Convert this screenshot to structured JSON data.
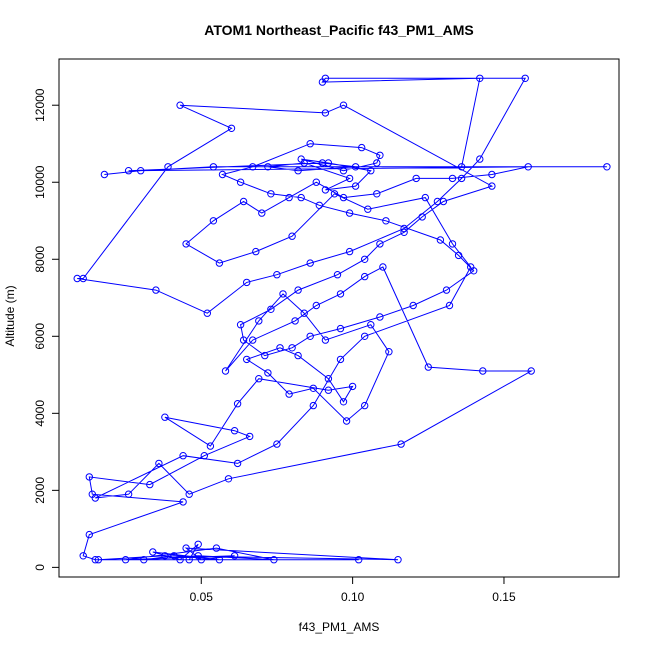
{
  "chart_data": {
    "type": "line",
    "title": "ATOM1 Northeast_Pacific f43_PM1_AMS",
    "xlabel": "f43_PM1_AMS",
    "ylabel": "Altitude (m)",
    "xlim": [
      0.003,
      0.188
    ],
    "ylim": [
      -250,
      13200
    ],
    "xticks": [
      0.05,
      0.1,
      0.15
    ],
    "xtick_labels": [
      "0.05",
      "0.10",
      "0.15"
    ],
    "yticks": [
      0,
      2000,
      4000,
      6000,
      8000,
      10000,
      12000
    ],
    "ytick_labels": [
      "0",
      "2000",
      "4000",
      "6000",
      "8000",
      "10000",
      "12000"
    ],
    "marker": "open-circle",
    "grid": false,
    "series": [
      {
        "color": "#0000ff",
        "x": [
          0.102,
          0.016,
          0.038,
          0.115,
          0.045,
          0.05,
          0.061,
          0.025,
          0.055,
          0.074,
          0.049,
          0.031,
          0.041,
          0.056,
          0.034,
          0.043,
          0.049,
          0.046,
          0.015,
          0.011,
          0.013,
          0.044,
          0.014,
          0.013,
          0.033,
          0.051,
          0.066,
          0.061,
          0.038,
          0.053,
          0.062,
          0.069,
          0.092,
          0.1,
          0.097,
          0.092,
          0.082,
          0.076,
          0.065,
          0.072,
          0.079,
          0.087,
          0.098,
          0.104,
          0.112,
          0.106,
          0.091,
          0.084,
          0.077,
          0.069,
          0.058,
          0.067,
          0.081,
          0.088,
          0.096,
          0.104,
          0.11,
          0.125,
          0.143,
          0.159,
          0.116,
          0.059,
          0.046,
          0.036,
          0.026,
          0.015,
          0.044,
          0.062,
          0.075,
          0.087,
          0.096,
          0.104,
          0.132,
          0.139,
          0.133,
          0.124,
          0.105,
          0.094,
          0.08,
          0.068,
          0.056,
          0.045,
          0.054,
          0.064,
          0.07,
          0.079,
          0.088,
          0.097,
          0.108,
          0.121,
          0.133,
          0.146,
          0.158,
          0.026,
          0.09,
          0.101,
          0.082,
          0.072,
          0.084,
          0.099,
          0.091,
          0.101,
          0.106,
          0.092,
          0.083,
          0.097,
          0.108,
          0.109,
          0.103,
          0.086,
          0.067,
          0.057,
          0.063,
          0.073,
          0.083,
          0.089,
          0.099,
          0.111,
          0.129,
          0.135,
          0.14,
          0.131,
          0.12,
          0.109,
          0.096,
          0.086,
          0.08,
          0.071,
          0.064,
          0.063,
          0.073,
          0.082,
          0.095,
          0.104,
          0.109,
          0.117,
          0.123,
          0.13,
          0.146,
          0.097,
          0.091,
          0.043,
          0.06,
          0.039,
          0.011,
          0.009,
          0.035,
          0.052,
          0.065,
          0.075,
          0.086,
          0.099,
          0.117,
          0.128,
          0.136,
          0.142,
          0.157,
          0.091,
          0.09,
          0.142,
          0.136,
          0.184,
          0.054,
          0.03,
          0.018
        ],
        "y": [
          200,
          200,
          300,
          200,
          500,
          200,
          300,
          200,
          500,
          200,
          300,
          200,
          300,
          200,
          400,
          200,
          600,
          200,
          200,
          300,
          850,
          1700,
          1900,
          2350,
          2150,
          2900,
          3400,
          3550,
          3900,
          3150,
          4250,
          4900,
          4600,
          4700,
          4300,
          4900,
          5500,
          5700,
          5400,
          5050,
          4500,
          4650,
          3800,
          4200,
          5600,
          6300,
          5900,
          6600,
          7100,
          6400,
          5100,
          5900,
          6400,
          6800,
          7100,
          7550,
          7800,
          5200,
          5100,
          5100,
          3200,
          2300,
          1900,
          2700,
          1900,
          1800,
          2900,
          2700,
          3200,
          4200,
          5400,
          6000,
          6800,
          7800,
          8400,
          9600,
          9300,
          9700,
          8600,
          8200,
          7900,
          8400,
          9000,
          9500,
          9200,
          9600,
          10000,
          9600,
          9700,
          10100,
          10100,
          10200,
          10400,
          10300,
          10500,
          10400,
          10300,
          10400,
          10500,
          10100,
          9800,
          9900,
          10300,
          10500,
          10600,
          10300,
          10500,
          10700,
          10900,
          11000,
          10400,
          10200,
          10000,
          9700,
          9600,
          9400,
          9200,
          9000,
          8500,
          8100,
          7700,
          7200,
          6800,
          6500,
          6200,
          6000,
          5700,
          5500,
          5900,
          6300,
          6700,
          7200,
          7600,
          8000,
          8400,
          8700,
          9100,
          9500,
          9900,
          12000,
          11800,
          12000,
          11400,
          10400,
          7500,
          7500,
          7200,
          6600,
          7400,
          7600,
          7900,
          8200,
          8800,
          9500,
          10100,
          10600,
          12700,
          12700,
          12600,
          12700,
          10400,
          10400,
          10400,
          10300,
          10200
        ]
      }
    ]
  }
}
